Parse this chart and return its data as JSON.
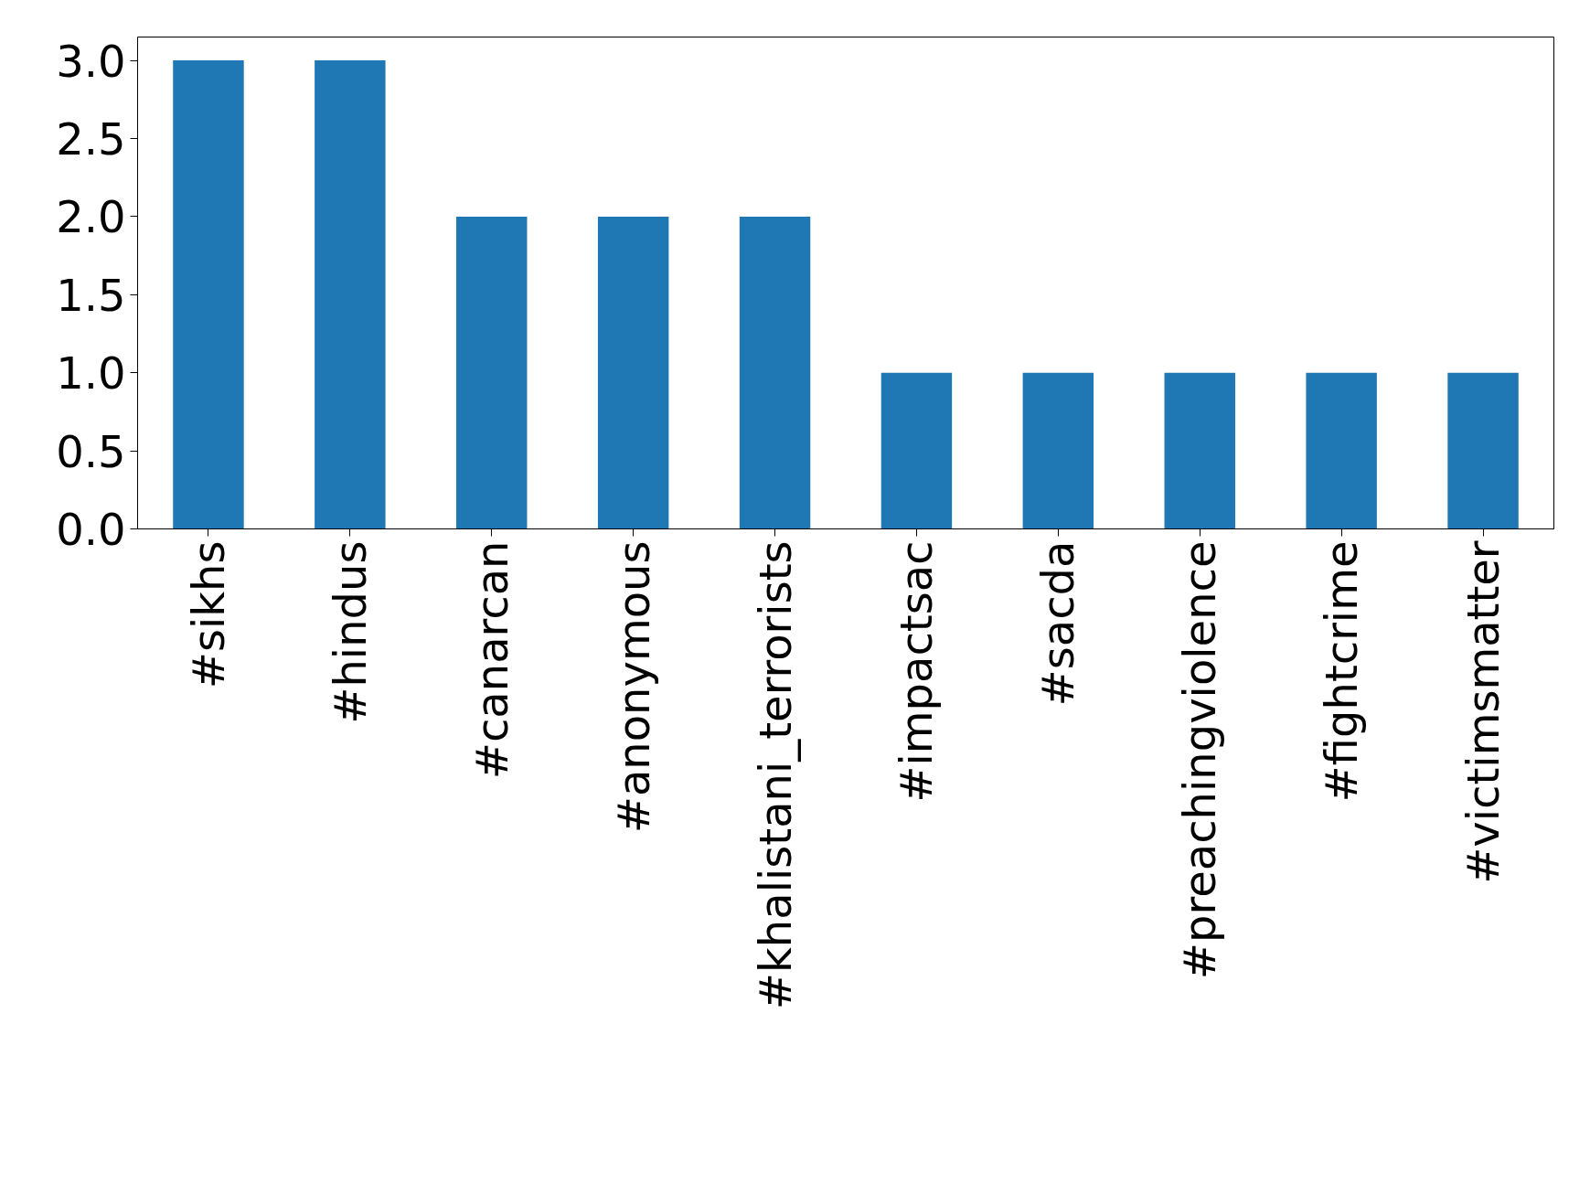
{
  "chart_data": {
    "type": "bar",
    "categories": [
      "#sikhs",
      "#hindus",
      "#canarcan",
      "#anonymous",
      "#khalistani_terrorists",
      "#impactsac",
      "#sacda",
      "#preachingviolence",
      "#fightcrime",
      "#victimsmatter"
    ],
    "values": [
      3,
      3,
      2,
      2,
      2,
      1,
      1,
      1,
      1,
      1
    ],
    "color": "#1f77b4",
    "ylim": [
      0,
      3.15
    ],
    "yticks": [
      {
        "value": 0,
        "label": "0.0"
      },
      {
        "value": 0.5,
        "label": "0.5"
      },
      {
        "value": 1,
        "label": "1.0"
      },
      {
        "value": 1.5,
        "label": "1.5"
      },
      {
        "value": 2,
        "label": "2.0"
      },
      {
        "value": 2.5,
        "label": "2.5"
      },
      {
        "value": 3,
        "label": "3.0"
      }
    ],
    "grid": false
  }
}
